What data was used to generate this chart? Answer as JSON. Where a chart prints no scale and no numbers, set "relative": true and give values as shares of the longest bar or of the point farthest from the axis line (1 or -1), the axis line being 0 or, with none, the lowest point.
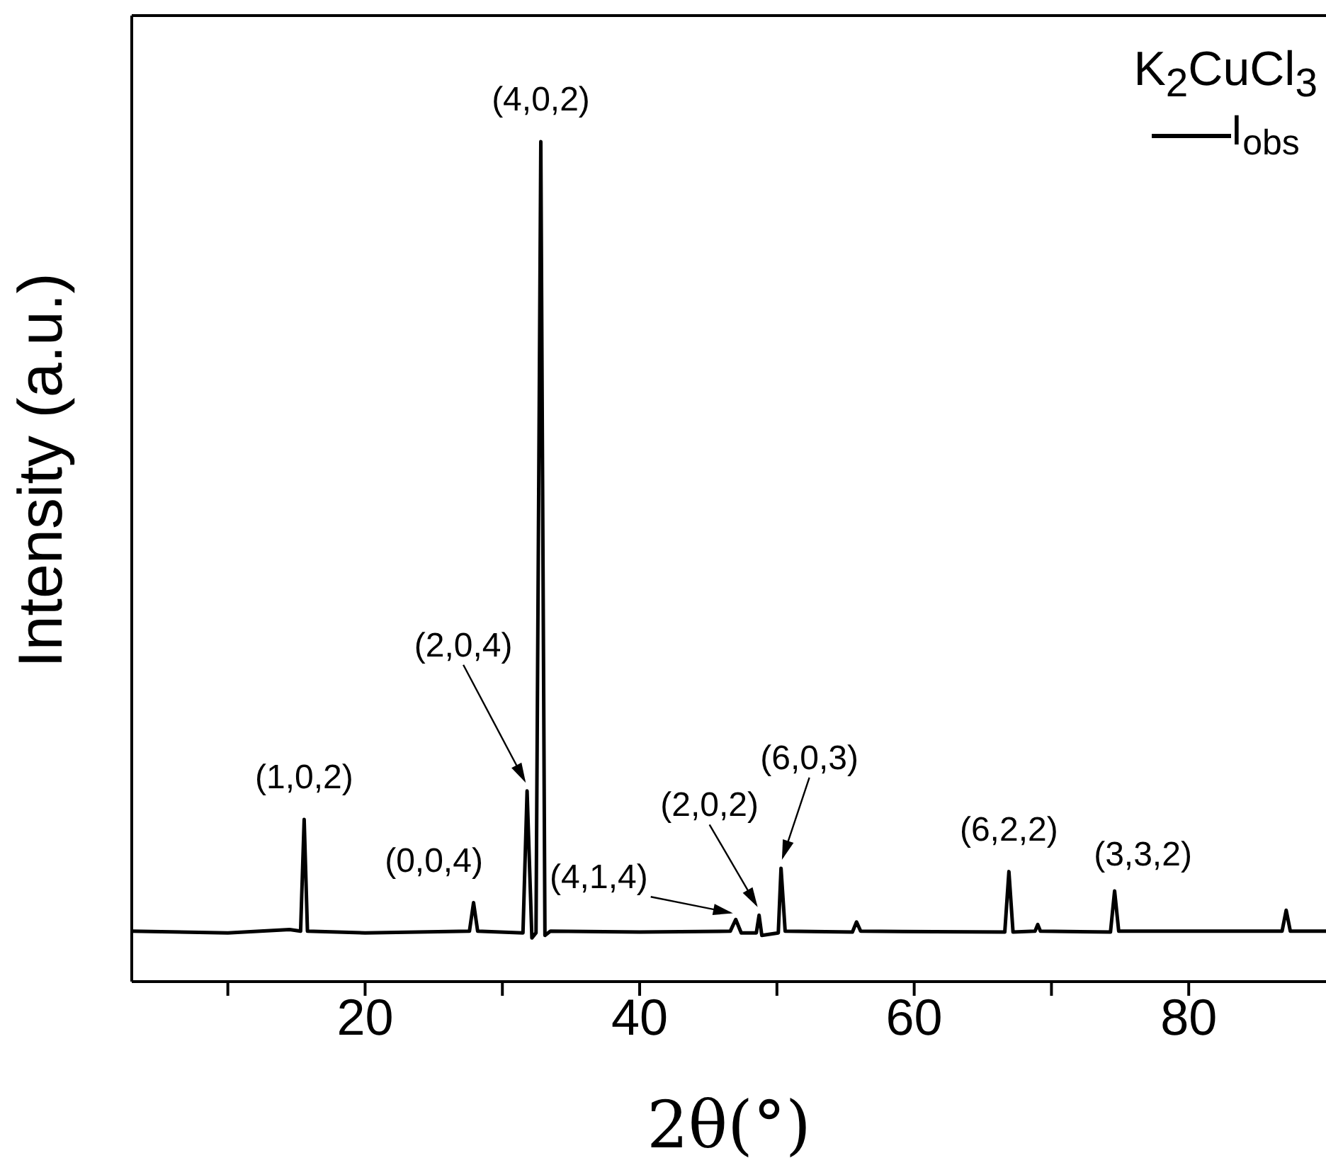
{
  "chart_data": {
    "type": "line",
    "relative": true,
    "xlabel": "2θ(°)",
    "ylabel": "Intensity (a.u.)",
    "legend_title": "K$_{2}$CuCl$_{3}$",
    "legend": "top right",
    "marker": "none",
    "line_style": "solid",
    "xlim": [
      3,
      90
    ],
    "xticks": [
      {
        "value": 10,
        "label": null
      },
      20,
      {
        "value": 30,
        "label": null
      },
      40,
      {
        "value": 50,
        "label": null
      },
      60,
      {
        "value": 70,
        "label": null
      },
      80
    ],
    "x": [
      3,
      10,
      14.5,
      15.3,
      15.56,
      15.8,
      20,
      27.6,
      27.9,
      28.2,
      31.5,
      31.8,
      32.15,
      32.45,
      32.8,
      33.1,
      33.5,
      40,
      46.6,
      47.0,
      47.4,
      48.5,
      48.7,
      48.9,
      50.1,
      50.3,
      50.6,
      55.5,
      55.8,
      56.1,
      66.6,
      66.9,
      67.2,
      68.8,
      69.0,
      69.2,
      74.3,
      74.6,
      74.9,
      86.8,
      87.1,
      87.4,
      90
    ],
    "series": [
      {
        "name": "I$_{obs}$",
        "color": "#000000",
        "values": [
          0.06,
          0.058,
          0.062,
          0.06,
          0.193,
          0.06,
          0.058,
          0.06,
          0.094,
          0.06,
          0.058,
          0.227,
          0.052,
          0.058,
          1,
          0.055,
          0.06,
          0.059,
          0.06,
          0.074,
          0.058,
          0.058,
          0.079,
          0.055,
          0.058,
          0.135,
          0.06,
          0.059,
          0.071,
          0.06,
          0.059,
          0.131,
          0.059,
          0.06,
          0.068,
          0.06,
          0.059,
          0.108,
          0.06,
          0.06,
          0.085,
          0.06,
          0.06
        ]
      }
    ],
    "annotations": [
      {
        "text": "(1,0,2)",
        "x": 15.56,
        "y": 0.193
      },
      {
        "text": "(0,0,4)",
        "x": 27.9,
        "y": 0.094
      },
      {
        "text": "(2,0,4)",
        "x": 31.8,
        "y": 0.227
      },
      {
        "text": "(4,0,2)",
        "x": 32.8,
        "y": 1
      },
      {
        "text": "(4,1,4)",
        "x": 47.0,
        "y": 0.074
      },
      {
        "text": "(2,0,2)",
        "x": 48.7,
        "y": 0.079
      },
      {
        "text": "(6,0,3)",
        "x": 50.3,
        "y": 0.135
      },
      {
        "text": "(6,2,2)",
        "x": 66.9,
        "y": 0.131
      },
      {
        "text": "(3,3,2)",
        "x": 74.6,
        "y": 0.108
      }
    ]
  }
}
